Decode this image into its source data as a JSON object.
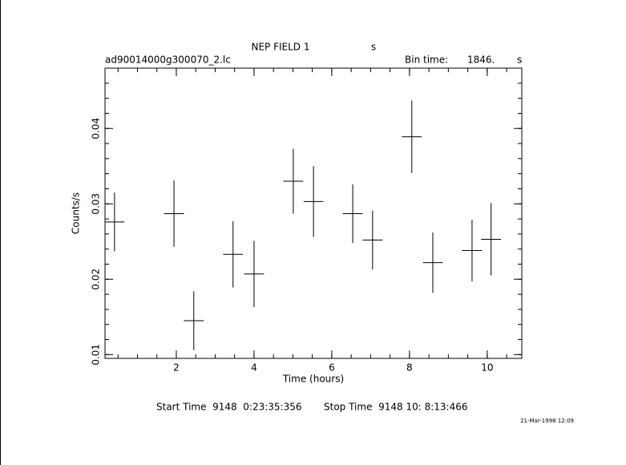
{
  "chart_data": {
    "type": "errorbar",
    "title": "NEP FIELD 1",
    "title_unit": "s",
    "subtitle": "ad90014000g300070_2.lc",
    "bin_time_label": "Bin time:",
    "bin_time": "1846.",
    "bin_time_unit": "s",
    "xlabel": "Time (hours)",
    "ylabel": "Counts/s",
    "start_time": "Start Time  9148  0:23:35:356",
    "stop_time": "Stop Time  9148 10: 8:13:466",
    "date": "21-Mar-1998 12:09",
    "color": "#000000",
    "x": [
      0.41,
      1.94,
      2.45,
      3.46,
      4.0,
      5.01,
      5.53,
      6.54,
      7.05,
      8.06,
      8.6,
      9.61,
      10.1
    ],
    "xerr": [
      0.256,
      0.256,
      0.256,
      0.256,
      0.256,
      0.256,
      0.256,
      0.256,
      0.256,
      0.256,
      0.256,
      0.256,
      0.256
    ],
    "values": [
      0.0276,
      0.0287,
      0.0145,
      0.0233,
      0.0207,
      0.033,
      0.0303,
      0.0287,
      0.0252,
      0.0389,
      0.0222,
      0.0238,
      0.0253
    ],
    "yerr": [
      0.0039,
      0.0044,
      0.0039,
      0.0044,
      0.0044,
      0.0043,
      0.0047,
      0.0039,
      0.0039,
      0.0048,
      0.004,
      0.0041,
      0.0048
    ],
    "xlim": [
      0.165,
      10.89
    ],
    "ylim": [
      0.0095,
      0.048
    ],
    "xticks": [
      2,
      4,
      6,
      8,
      10
    ],
    "yticks": [
      0.01,
      0.02,
      0.03,
      0.04
    ]
  }
}
